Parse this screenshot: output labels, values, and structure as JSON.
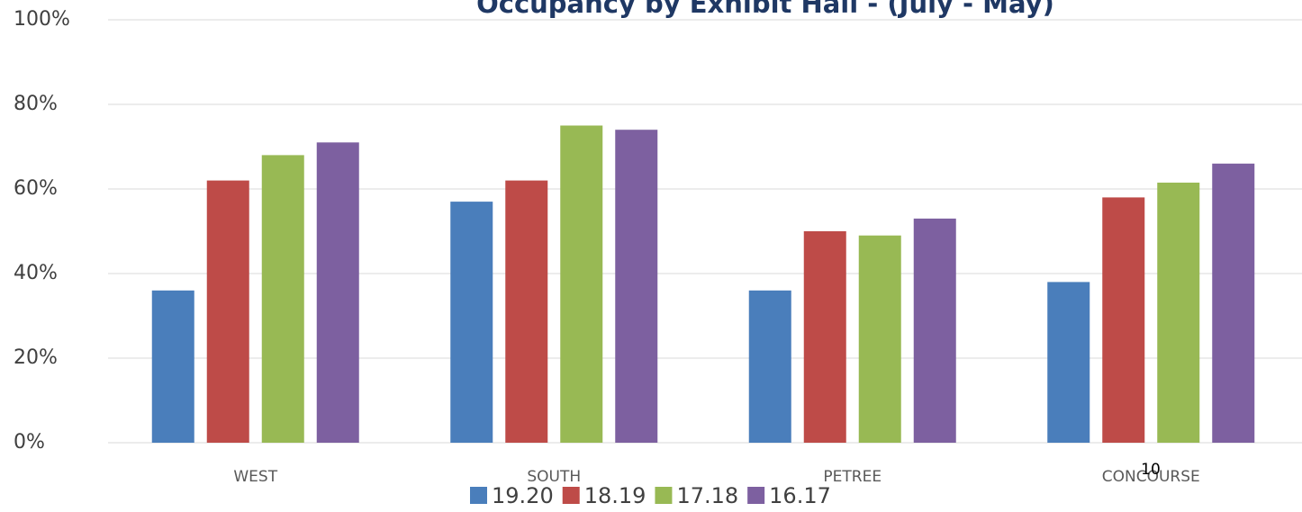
{
  "chart_data": {
    "type": "bar",
    "title": "Occupancy by Exhibit Hall - (July - May)",
    "categories": [
      "WEST",
      "SOUTH",
      "PETREE",
      "CONCOURSE"
    ],
    "series": [
      {
        "name": "19.20",
        "color": "#4a7ebb",
        "values": [
          36,
          57,
          36,
          38
        ]
      },
      {
        "name": "18.19",
        "color": "#be4b48",
        "values": [
          62,
          62,
          50,
          58
        ]
      },
      {
        "name": "17.18",
        "color": "#98b954",
        "values": [
          68,
          75,
          49,
          61.5
        ]
      },
      {
        "name": "16.17",
        "color": "#7d60a0",
        "values": [
          71,
          74,
          53,
          66
        ]
      }
    ],
    "ylim": [
      0,
      100
    ],
    "yticks": [
      {
        "value": 0,
        "label": "0%"
      },
      {
        "value": 20,
        "label": "20%"
      },
      {
        "value": 40,
        "label": "40%"
      },
      {
        "value": 60,
        "label": "60%"
      },
      {
        "value": 80,
        "label": "80%"
      },
      {
        "value": 100,
        "label": "100%"
      }
    ],
    "grid": true,
    "legend": "bottom"
  },
  "page_number": "10"
}
